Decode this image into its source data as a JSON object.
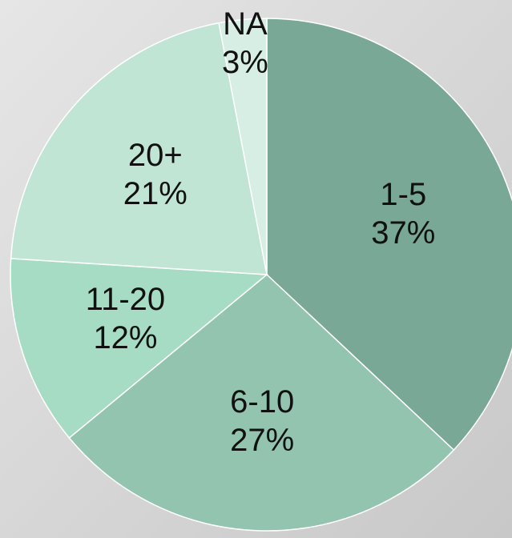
{
  "chart_data": {
    "type": "pie",
    "categories": [
      "1-5",
      "6-10",
      "11-20",
      "20+",
      "NA"
    ],
    "values": [
      37,
      27,
      12,
      21,
      3
    ],
    "value_labels": [
      "37%",
      "27%",
      "12%",
      "21%",
      "3%"
    ],
    "colors": [
      "#7aa896",
      "#93c4b0",
      "#a6dcc4",
      "#c1e5d5",
      "#d7eee4"
    ]
  }
}
